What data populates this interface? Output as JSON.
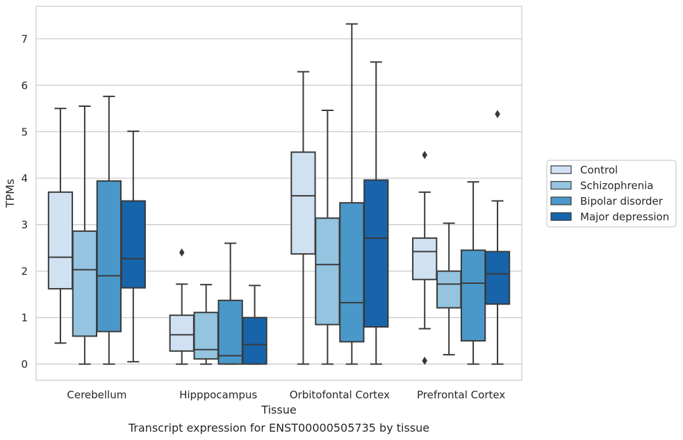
{
  "chart_data": {
    "type": "boxplot",
    "xlabel": "Tissue",
    "ylabel": "TPMs",
    "caption": "Transcript expression for ENST00000505735 by tissue",
    "ylim": [
      -0.35,
      7.7
    ],
    "yticks": [
      0,
      1,
      2,
      3,
      4,
      5,
      6,
      7
    ],
    "grid": "horizontal",
    "legend_position": "right",
    "categories": [
      "Cerebellum",
      "Hipppocampus",
      "Orbitofontal Cortex",
      "Prefrontal Cortex"
    ],
    "series": [
      {
        "name": "Control",
        "color": "#d0e1f2",
        "boxes": [
          {
            "whislo": 0.45,
            "q1": 1.62,
            "med": 2.3,
            "q3": 3.7,
            "whishi": 5.5,
            "fliers": []
          },
          {
            "whislo": 0.0,
            "q1": 0.28,
            "med": 0.63,
            "q3": 1.05,
            "whishi": 1.72,
            "fliers": [
              2.4
            ]
          },
          {
            "whislo": 0.0,
            "q1": 2.37,
            "med": 3.62,
            "q3": 4.56,
            "whishi": 6.29,
            "fliers": []
          },
          {
            "whislo": 0.76,
            "q1": 1.82,
            "med": 2.42,
            "q3": 2.71,
            "whishi": 3.7,
            "fliers": [
              4.5,
              0.07
            ]
          }
        ]
      },
      {
        "name": "Schizophrenia",
        "color": "#94c4df",
        "boxes": [
          {
            "whislo": 0.0,
            "q1": 0.6,
            "med": 2.03,
            "q3": 2.86,
            "whishi": 5.55,
            "fliers": []
          },
          {
            "whislo": 0.0,
            "q1": 0.11,
            "med": 0.31,
            "q3": 1.11,
            "whishi": 1.71,
            "fliers": []
          },
          {
            "whislo": 0.0,
            "q1": 0.85,
            "med": 2.14,
            "q3": 3.14,
            "whishi": 5.46,
            "fliers": []
          },
          {
            "whislo": 0.2,
            "q1": 1.21,
            "med": 1.72,
            "q3": 2.0,
            "whishi": 3.03,
            "fliers": []
          }
        ]
      },
      {
        "name": "Bipolar disorder",
        "color": "#4a98c9",
        "boxes": [
          {
            "whislo": 0.0,
            "q1": 0.7,
            "med": 1.9,
            "q3": 3.94,
            "whishi": 5.76,
            "fliers": []
          },
          {
            "whislo": 0.0,
            "q1": 0.0,
            "med": 0.18,
            "q3": 1.37,
            "whishi": 2.6,
            "fliers": []
          },
          {
            "whislo": 0.0,
            "q1": 0.48,
            "med": 1.32,
            "q3": 3.47,
            "whishi": 7.32,
            "fliers": []
          },
          {
            "whislo": 0.0,
            "q1": 0.5,
            "med": 1.74,
            "q3": 2.45,
            "whishi": 3.92,
            "fliers": []
          }
        ]
      },
      {
        "name": "Major depression",
        "color": "#1764ab",
        "boxes": [
          {
            "whislo": 0.05,
            "q1": 1.64,
            "med": 2.27,
            "q3": 3.51,
            "whishi": 5.01,
            "fliers": []
          },
          {
            "whislo": 0.0,
            "q1": 0.0,
            "med": 0.42,
            "q3": 1.0,
            "whishi": 1.69,
            "fliers": []
          },
          {
            "whislo": 0.0,
            "q1": 0.8,
            "med": 2.71,
            "q3": 3.96,
            "whishi": 6.5,
            "fliers": []
          },
          {
            "whislo": 0.0,
            "q1": 1.29,
            "med": 1.94,
            "q3": 2.42,
            "whishi": 3.51,
            "fliers": [
              5.38
            ]
          }
        ]
      }
    ]
  }
}
